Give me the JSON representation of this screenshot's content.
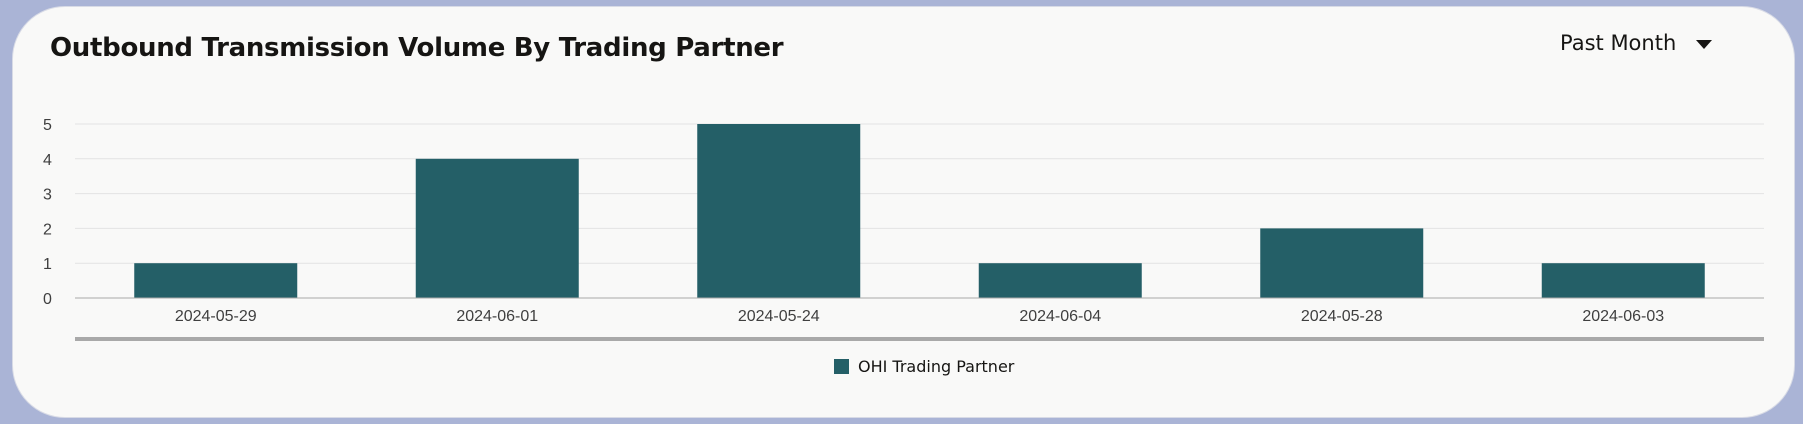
{
  "header": {
    "title": "Outbound Transmission Volume By Trading Partner"
  },
  "period_selector": {
    "selected": "Past Month"
  },
  "colors": {
    "bar": "#245f67",
    "grid": "#e3e3e3",
    "baseline": "#a9a9a9"
  },
  "chart_data": {
    "type": "bar",
    "title": "Outbound Transmission Volume By Trading Partner",
    "xlabel": "",
    "ylabel": "",
    "categories": [
      "2024-05-29",
      "2024-06-01",
      "2024-05-24",
      "2024-06-04",
      "2024-05-28",
      "2024-06-03"
    ],
    "series": [
      {
        "name": "OHI Trading Partner",
        "values": [
          1,
          4,
          5,
          1,
          2,
          1
        ]
      }
    ],
    "y_ticks": [
      0,
      1,
      2,
      3,
      4,
      5
    ],
    "ylim": [
      0,
      5
    ],
    "grid": true,
    "legend": "bottom-center"
  }
}
